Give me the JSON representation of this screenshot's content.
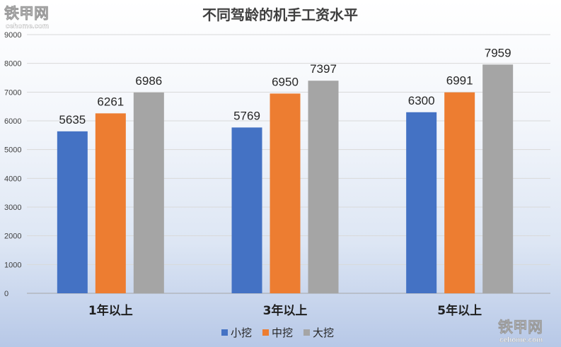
{
  "chart_data": {
    "type": "bar",
    "title": "不同驾龄的机手工资水平",
    "categories": [
      "1年以上",
      "3年以上",
      "5年以上"
    ],
    "series": [
      {
        "name": "小挖",
        "color": "#4472C4",
        "values": [
          5635,
          5769,
          6300
        ]
      },
      {
        "name": "中挖",
        "color": "#ED7D31",
        "values": [
          6261,
          6950,
          6991
        ]
      },
      {
        "name": "大挖",
        "color": "#A5A5A5",
        "values": [
          6986,
          7397,
          7959
        ]
      }
    ],
    "ylim": [
      0,
      9000
    ],
    "yticks": [
      0,
      1000,
      2000,
      3000,
      4000,
      5000,
      6000,
      7000,
      8000,
      9000
    ],
    "grid": true,
    "legend": "bottom"
  },
  "watermarks": [
    {
      "name": "watermark-top-left",
      "line1": "铁甲网",
      "line2": "cehome.com"
    },
    {
      "name": "watermark-bottom-right",
      "line1": "铁甲网",
      "line2": "cehome.com"
    }
  ]
}
